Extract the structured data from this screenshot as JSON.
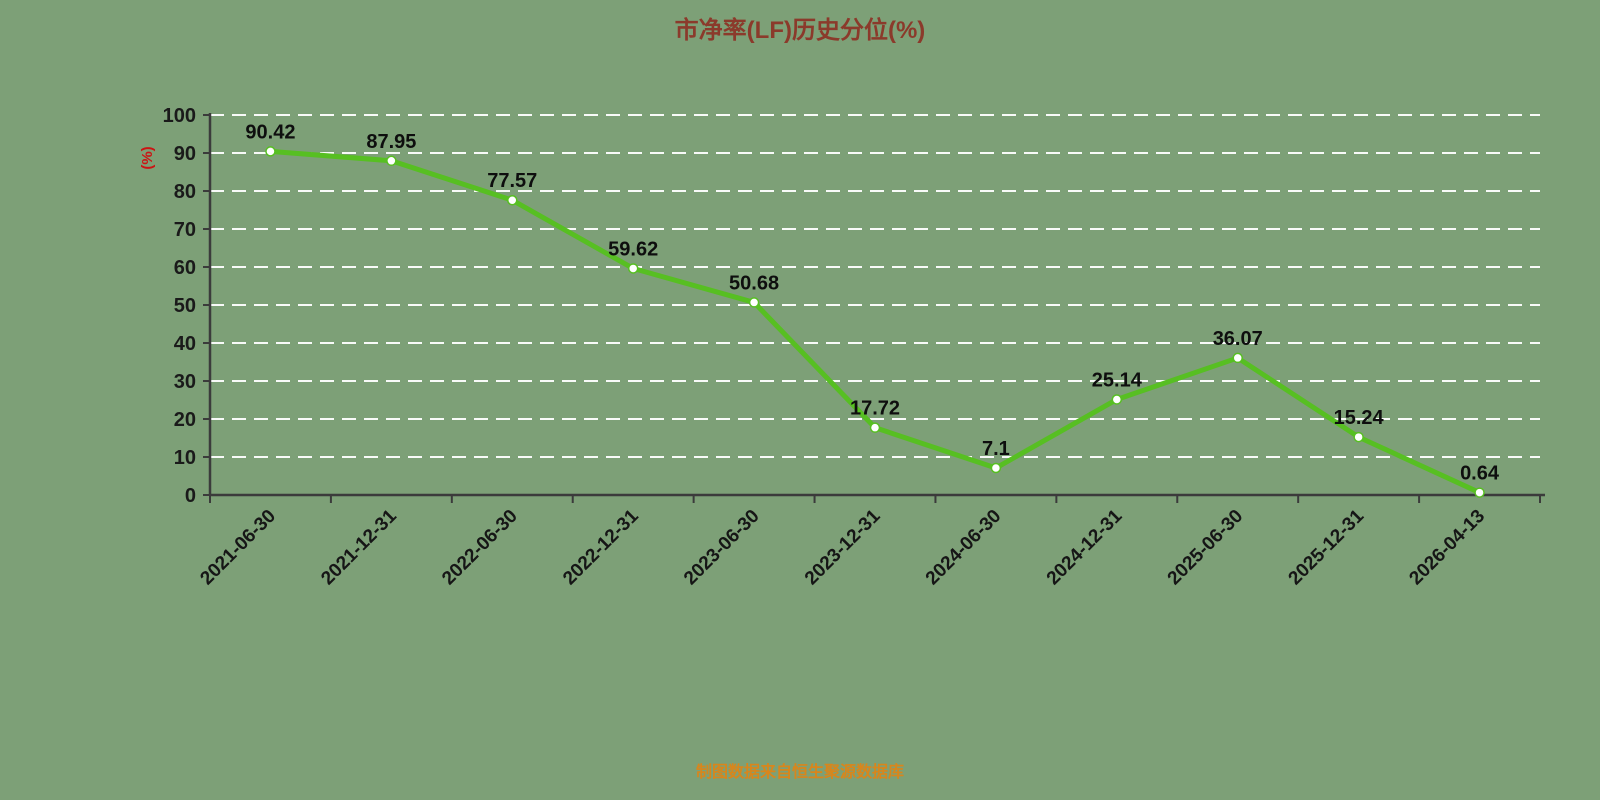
{
  "title": "市净率(LF)历史分位(%)",
  "footer": "制图数据来自恒生聚源数据库",
  "colors": {
    "background": "#7da077",
    "line": "#57bf22",
    "grid": "#ffffff",
    "axis": "#3b3b3b",
    "title": "#8b3a2b",
    "ylabel": "#cc1414",
    "footer": "#d8861c",
    "label": "#0e0e0e"
  },
  "chart_data": {
    "type": "line",
    "title": "市净率(LF)历史分位(%)",
    "categories": [
      "2021-06-30",
      "2021-12-31",
      "2022-06-30",
      "2022-12-31",
      "2023-06-30",
      "2023-12-31",
      "2024-06-30",
      "2024-12-31",
      "2025-06-30",
      "2025-12-31",
      "2026-04-13"
    ],
    "values": [
      90.42,
      87.95,
      77.57,
      59.62,
      50.68,
      17.72,
      7.1,
      25.14,
      36.07,
      15.24,
      0.64
    ],
    "xlabel": "",
    "ylabel": "(%)",
    "ylim": [
      0,
      100
    ],
    "yticks": [
      0,
      10,
      20,
      30,
      40,
      50,
      60,
      70,
      80,
      90,
      100
    ],
    "grid": true,
    "grid_style": "dashed-white-horizontal",
    "legend": "none",
    "point_marker": "white-dot",
    "value_labels_shown": true,
    "x_tick_label_rotation_deg": 45
  }
}
